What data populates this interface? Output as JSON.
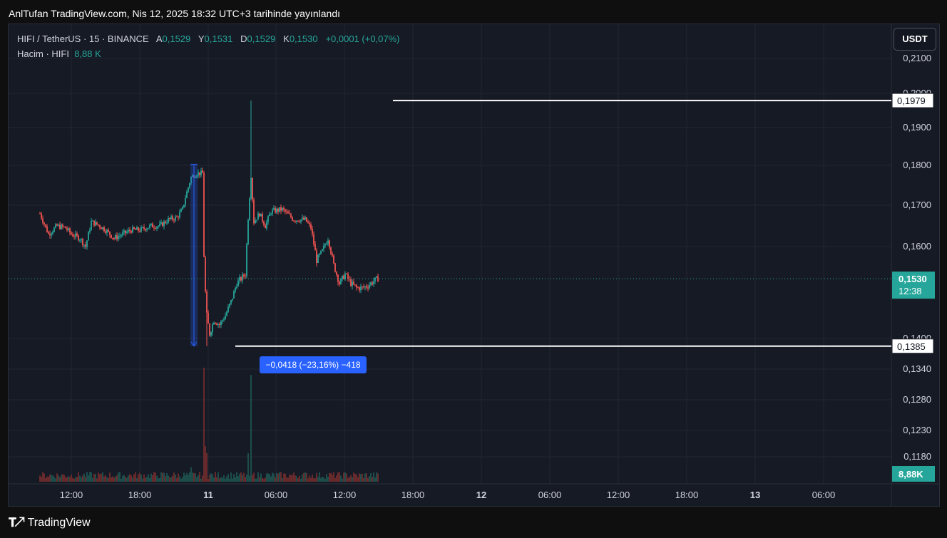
{
  "publisher_line": "AnlTufan TradingView.com, Nis 12, 2025 18:32 UTC+3 tarihinde yayınlandı",
  "legend": {
    "symbol": "HIFI / TetherUS · 15 · BINANCE",
    "o_label": "A",
    "o_value": "0,1529",
    "h_label": "Y",
    "h_value": "0,1531",
    "l_label": "D",
    "l_value": "0,1529",
    "c_label": "K",
    "c_value": "0,1530",
    "change": "+0,0001 (+0,07%)",
    "volume_label": "Hacim · HIFI",
    "volume_value": "8,88 K"
  },
  "currency_button": "USDT",
  "footer_brand": "TradingView",
  "colors": {
    "up": "#26a69a",
    "down": "#ef5350",
    "background": "#161a25",
    "measure": "#2962ff"
  },
  "chart_data": {
    "type": "candlestick",
    "symbol": "HIFI/USDT",
    "interval": "15",
    "y_ticks": [
      "0,2100",
      "0,2000",
      "0,1900",
      "0,1800",
      "0,1700",
      "0,1600",
      "0,1400",
      "0,1340",
      "0,1280",
      "0,1230",
      "0,1180"
    ],
    "x_ticks": [
      "12:00",
      "18:00",
      "11",
      "06:00",
      "12:00",
      "18:00",
      "12",
      "06:00",
      "12:00",
      "18:00",
      "13",
      "06:00"
    ],
    "x_ticks_bold": [
      "11",
      "12",
      "13"
    ],
    "horizontal_lines": [
      {
        "value": 0.1979,
        "label": "0,1979"
      },
      {
        "value": 0.1385,
        "label": "0,1385"
      }
    ],
    "last_price": {
      "value": 0.153,
      "label": "0,1530",
      "countdown": "12:38"
    },
    "last_volume": "8,88K",
    "measure": {
      "from": 0.1803,
      "to": 0.1385,
      "label": "−0,0418 (−23,16%) −418"
    },
    "price_path": [
      [
        "10 06:30",
        0.168
      ],
      [
        "10 08:00",
        0.163
      ],
      [
        "10 09:30",
        0.165
      ],
      [
        "10 11:00",
        0.1645
      ],
      [
        "10 12:00",
        0.163
      ],
      [
        "10 13:30",
        0.162
      ],
      [
        "10 14:30",
        0.16
      ],
      [
        "10 15:30",
        0.166
      ],
      [
        "10 17:00",
        0.165
      ],
      [
        "10 18:00",
        0.164
      ],
      [
        "10 19:30",
        0.162
      ],
      [
        "10 21:00",
        0.163
      ],
      [
        "10 22:30",
        0.164
      ],
      [
        "11 00:00",
        0.164
      ],
      [
        "11 02:00",
        0.165
      ],
      [
        "11 03:30",
        0.165
      ],
      [
        "11 05:00",
        0.1665
      ],
      [
        "11 06:30",
        0.167
      ],
      [
        "11 07:30",
        0.169
      ],
      [
        "11 08:00",
        0.172
      ],
      [
        "11 09:00",
        0.177
      ],
      [
        "11 10:00",
        0.178
      ],
      [
        "11 11:00",
        0.178
      ],
      [
        "11 11:15",
        0.158
      ],
      [
        "11 11:30",
        0.15
      ],
      [
        "11 11:45",
        0.145
      ],
      [
        "11 12:15",
        0.141
      ],
      [
        "11 13:00",
        0.144
      ],
      [
        "11 14:00",
        0.143
      ],
      [
        "11 15:00",
        0.145
      ],
      [
        "11 16:00",
        0.148
      ],
      [
        "11 17:00",
        0.152
      ],
      [
        "11 18:30",
        0.154
      ],
      [
        "11 19:00",
        0.167
      ],
      [
        "11 19:30",
        0.1775
      ],
      [
        "11 20:00",
        0.166
      ],
      [
        "11 21:00",
        0.168
      ],
      [
        "11 22:00",
        0.165
      ],
      [
        "11 23:00",
        0.1685
      ],
      [
        "12 01:00",
        0.169
      ],
      [
        "12 03:00",
        0.1665
      ],
      [
        "12 05:00",
        0.1665
      ],
      [
        "12 06:00",
        0.1645
      ],
      [
        "12 07:00",
        0.157
      ],
      [
        "12 08:00",
        0.159
      ],
      [
        "12 09:00",
        0.162
      ],
      [
        "12 10:00",
        0.156
      ],
      [
        "12 11:00",
        0.152
      ],
      [
        "12 12:00",
        0.154
      ],
      [
        "12 13:00",
        0.152
      ],
      [
        "12 14:00",
        0.151
      ],
      [
        "12 15:00",
        0.151
      ],
      [
        "12 16:00",
        0.1515
      ],
      [
        "12 17:00",
        0.1525
      ],
      [
        "12 17:45",
        0.153
      ]
    ],
    "range_high": {
      "time": "11 19:30",
      "value": 0.1979
    },
    "range_low": {
      "time": "11 11:45",
      "value": 0.1385
    }
  }
}
